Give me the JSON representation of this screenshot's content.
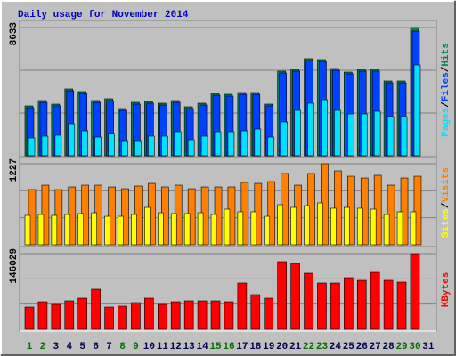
{
  "chart_data": {
    "type": "bar",
    "title": "Daily usage for November 2014",
    "separator": "/",
    "categories": [
      "1",
      "2",
      "3",
      "4",
      "5",
      "6",
      "7",
      "8",
      "9",
      "10",
      "11",
      "12",
      "13",
      "14",
      "15",
      "16",
      "17",
      "18",
      "19",
      "20",
      "21",
      "22",
      "23",
      "24",
      "25",
      "26",
      "27",
      "28",
      "29",
      "30",
      "31"
    ],
    "category_colors": [
      "#007000",
      "#007000",
      "#000050",
      "#000050",
      "#000050",
      "#000050",
      "#000050",
      "#007000",
      "#007000",
      "#000050",
      "#000050",
      "#000050",
      "#000050",
      "#000050",
      "#007000",
      "#007000",
      "#000050",
      "#000050",
      "#000050",
      "#000050",
      "#000050",
      "#007000",
      "#007000",
      "#000050",
      "#000050",
      "#000050",
      "#000050",
      "#000050",
      "#007000",
      "#007000",
      "#000050"
    ],
    "panels": [
      {
        "ylim": [
          0,
          8633
        ],
        "yticks": [
          8633
        ],
        "series": [
          {
            "name": "Hits",
            "color": "#00805c",
            "values": [
              3357,
              3717,
              3477,
              4496,
              4316,
              3717,
              3837,
              3177,
              3597,
              3657,
              3537,
              3717,
              3297,
              3537,
              4197,
              4137,
              4256,
              4256,
              3477,
              5695,
              5815,
              6535,
              6475,
              5875,
              5635,
              5815,
              5815,
              5036,
              5036,
              8633,
              null
            ]
          },
          {
            "name": "Files",
            "color": "#0040ff",
            "values": [
              3237,
              3597,
              3357,
              4376,
              4196,
              3597,
              3717,
              3057,
              3477,
              3537,
              3417,
              3597,
              3177,
              3417,
              4077,
              4017,
              4136,
              4136,
              3357,
              5575,
              5695,
              6415,
              6355,
              5755,
              5515,
              5695,
              5695,
              4916,
              4916,
              8393,
              null
            ]
          },
          {
            "name": "Pages",
            "color": "#00e0ff",
            "values": [
              1199,
              1319,
              1379,
              2158,
              1679,
              1259,
              1499,
              1019,
              1019,
              1319,
              1319,
              1619,
              1079,
              1319,
              1619,
              1619,
              1679,
              1799,
              1259,
              2278,
              3057,
              3537,
              3777,
              3057,
              2818,
              2818,
              2998,
              2638,
              2638,
              6115,
              null
            ]
          }
        ]
      },
      {
        "ylim": [
          0,
          1227
        ],
        "yticks": [
          1227
        ],
        "series": [
          {
            "name": "Visits",
            "color": "#ff8000",
            "values": [
              836,
              903,
              836,
              876,
              903,
              903,
              876,
              849,
              890,
              930,
              876,
              903,
              849,
              876,
              876,
              876,
              944,
              930,
              957,
              1079,
              903,
              1079,
              1227,
              1119,
              1038,
              1011,
              1052,
              903,
              1011,
              1038,
              null
            ]
          },
          {
            "name": "Sites",
            "color": "#ffff00",
            "values": [
              445,
              458,
              445,
              458,
              472,
              485,
              431,
              431,
              458,
              566,
              485,
              472,
              472,
              485,
              458,
              539,
              499,
              499,
              431,
              607,
              566,
              593,
              634,
              553,
              566,
              553,
              539,
              458,
              499,
              499,
              null
            ]
          }
        ]
      },
      {
        "ylim": [
          0,
          146029
        ],
        "yticks": [
          146029
        ],
        "series": [
          {
            "name": "KBytes",
            "color": "#ff0000",
            "values": [
              42950,
              53258,
              48104,
              54976,
              60130,
              77310,
              42950,
              44668,
              51540,
              60130,
              48104,
              53258,
              54976,
              54976,
              54976,
              53258,
              89336,
              67002,
              60130,
              130568,
              127132,
              108234,
              89336,
              89336,
              99644,
              94490,
              109952,
              94490,
              91054,
              146029,
              null
            ]
          }
        ]
      }
    ]
  }
}
